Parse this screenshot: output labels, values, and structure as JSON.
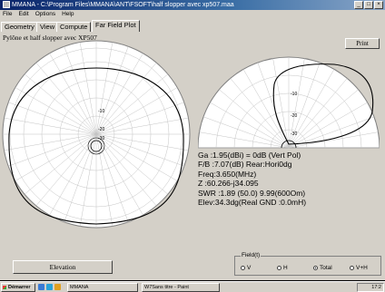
{
  "window": {
    "title": "MMANA - C:\\Program Files\\MMANA\\ANT\\FSOFT\\half slopper avec xp507.maa",
    "controls": [
      "_",
      "□",
      "×"
    ]
  },
  "menu": [
    "File",
    "Edit",
    "Options",
    "Help"
  ],
  "tabs": [
    {
      "label": "Geometry",
      "active": false
    },
    {
      "label": "View",
      "active": false
    },
    {
      "label": "Compute",
      "active": false
    },
    {
      "label": "Far Field Plot",
      "active": true
    }
  ],
  "plot": {
    "title": "Pylône et half slopper avec XP507",
    "print_label": "Print",
    "ring_labels": [
      "-10",
      "-20",
      "-30"
    ]
  },
  "results": {
    "ga": "Ga :1.95(dBi) = 0dB  (Vert Pol)",
    "fb": "F/B :7.07(dB) Rear:Hori0dg",
    "freq": "Freq:3.650(MHz)",
    "z": "Z   :60.266-j34.095",
    "swr": "SWR :1.89 (50.0)  9.99(600Om)",
    "elev": "Elev:34.3dg(Real GND :0.0mH)"
  },
  "elevation_button": "Elevation",
  "field": {
    "legend": "Field(t)",
    "options": [
      {
        "label": "V",
        "selected": false
      },
      {
        "label": "H",
        "selected": false
      },
      {
        "label": "Total",
        "selected": true
      },
      {
        "label": "V+H",
        "selected": false
      }
    ]
  },
  "taskbar": {
    "start": "Démarrer",
    "tasks": [
      "MMANA",
      "W7Sans titre - Paint"
    ],
    "clock": "17:2"
  },
  "colors": {
    "titlebar": "#0a246a",
    "face": "#d4d0c8",
    "plot_bg": "#ffffff",
    "grid": "#b8b8b8",
    "pattern": "#000000"
  }
}
